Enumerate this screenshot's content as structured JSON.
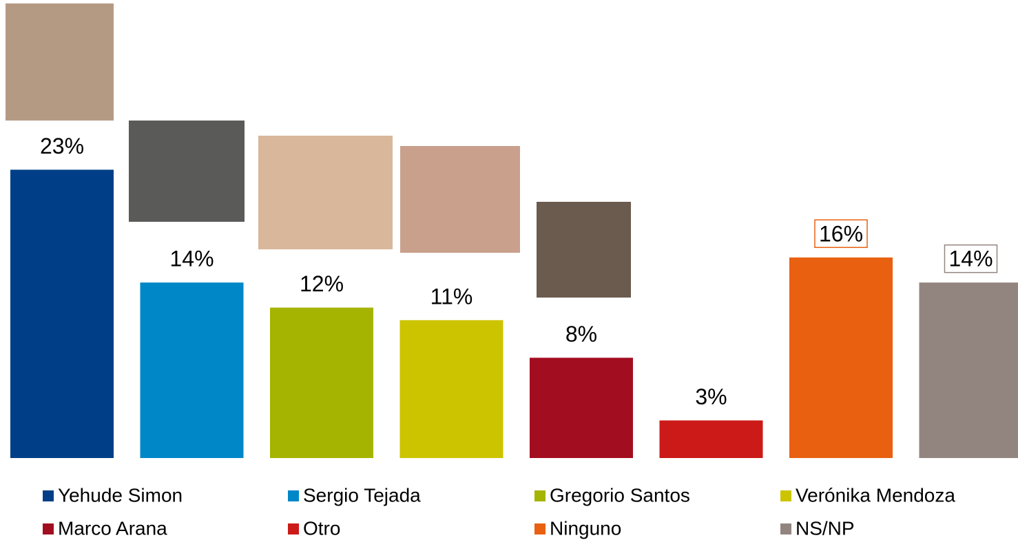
{
  "chart_data": {
    "type": "bar",
    "categories": [
      "Yehude Simon",
      "Sergio Tejada",
      "Gregorio Santos",
      "Verónika Mendoza",
      "Marco Arana",
      "Otro",
      "Ninguno",
      "NS/NP"
    ],
    "values": [
      23,
      14,
      12,
      11,
      8,
      3,
      16,
      14
    ],
    "value_labels": [
      "23%",
      "14%",
      "12%",
      "11%",
      "8%",
      "3%",
      "16%",
      "14%"
    ],
    "colors": [
      "#003f87",
      "#0087c8",
      "#a5b400",
      "#cdc400",
      "#a30d20",
      "#cb1a17",
      "#e86010",
      "#928580"
    ],
    "grid": false
  }
}
